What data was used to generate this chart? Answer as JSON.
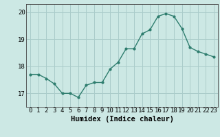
{
  "x": [
    0,
    1,
    2,
    3,
    4,
    5,
    6,
    7,
    8,
    9,
    10,
    11,
    12,
    13,
    14,
    15,
    16,
    17,
    18,
    19,
    20,
    21,
    22,
    23
  ],
  "y": [
    17.7,
    17.7,
    17.55,
    17.35,
    17.0,
    17.0,
    16.85,
    17.3,
    17.4,
    17.4,
    17.9,
    18.15,
    18.65,
    18.65,
    19.2,
    19.35,
    19.85,
    19.95,
    19.85,
    19.4,
    18.7,
    18.55,
    18.45,
    18.35
  ],
  "line_color": "#2e7d6e",
  "marker": "o",
  "marker_size": 2,
  "bg_color": "#cce8e4",
  "grid_color": "#aaccca",
  "axis_color": "#444444",
  "xlabel": "Humidex (Indice chaleur)",
  "ylabel": "",
  "xlim": [
    -0.5,
    23.5
  ],
  "ylim": [
    16.5,
    20.3
  ],
  "yticks": [
    17,
    18,
    19,
    20
  ],
  "xticks": [
    0,
    1,
    2,
    3,
    4,
    5,
    6,
    7,
    8,
    9,
    10,
    11,
    12,
    13,
    14,
    15,
    16,
    17,
    18,
    19,
    20,
    21,
    22,
    23
  ],
  "xlabel_fontsize": 7.5,
  "tick_fontsize": 6.5
}
